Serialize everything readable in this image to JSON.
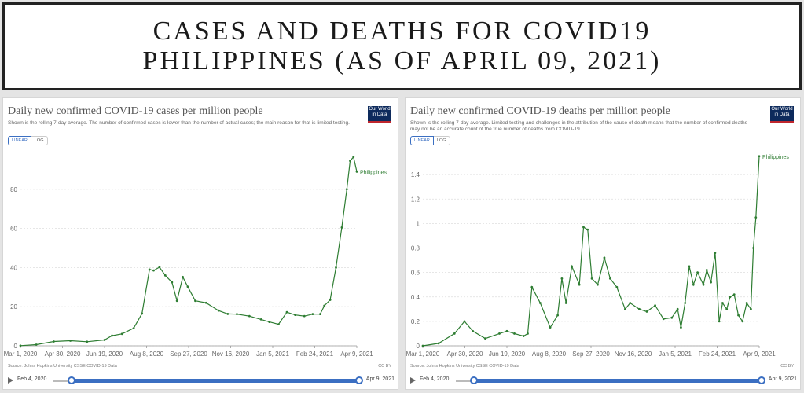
{
  "banner": {
    "line1": "CASES AND DEATHS FOR COVID19",
    "line2": "PHILIPPINES (AS OF APRIL 09, 2021)"
  },
  "common": {
    "logo_line1": "Our World",
    "logo_line2": "in Data",
    "toggle_linear": "LINEAR",
    "toggle_log": "LOG",
    "source": "Source: Johns Hopkins University CSSE COVID-19 Data",
    "license": "CC BY",
    "timeline_start": "Feb 4, 2020",
    "timeline_end": "Apr 9, 2021",
    "accent_color": "#3b6fc2",
    "line_color": "#2e7d32"
  },
  "chart_data": [
    {
      "type": "line",
      "title": "Daily new confirmed COVID-19 cases per million people",
      "subtitle": "Shown is the rolling 7-day average. The number of confirmed cases is lower than the number of actual cases; the main reason for that is limited testing.",
      "x_ticks": [
        "Mar 1, 2020",
        "Apr 30, 2020",
        "Jun 19, 2020",
        "Aug 8, 2020",
        "Sep 27, 2020",
        "Nov 16, 2020",
        "Jan 5, 2021",
        "Feb 24, 2021",
        "Apr 9, 2021"
      ],
      "y_ticks": [
        "0",
        "20",
        "40",
        "60",
        "80"
      ],
      "ylim": [
        0,
        100
      ],
      "xlim": [
        "2020-03-01",
        "2021-04-09"
      ],
      "series": [
        {
          "name": "Philippines",
          "x": [
            "2020-03-01",
            "2020-03-20",
            "2020-04-10",
            "2020-04-30",
            "2020-05-20",
            "2020-06-10",
            "2020-06-19",
            "2020-07-01",
            "2020-07-15",
            "2020-07-25",
            "2020-08-03",
            "2020-08-08",
            "2020-08-15",
            "2020-08-22",
            "2020-08-30",
            "2020-09-05",
            "2020-09-12",
            "2020-09-18",
            "2020-09-27",
            "2020-10-10",
            "2020-10-25",
            "2020-11-05",
            "2020-11-16",
            "2020-12-01",
            "2020-12-15",
            "2020-12-25",
            "2021-01-05",
            "2021-01-15",
            "2021-01-25",
            "2021-02-05",
            "2021-02-15",
            "2021-02-24",
            "2021-03-01",
            "2021-03-08",
            "2021-03-15",
            "2021-03-22",
            "2021-03-28",
            "2021-04-01",
            "2021-04-05",
            "2021-04-09"
          ],
          "y": [
            0.1,
            0.6,
            2.2,
            2.6,
            2.1,
            3.0,
            5.2,
            6.1,
            9.0,
            16.5,
            39.0,
            38.5,
            40.2,
            36.0,
            32.5,
            23.0,
            35.2,
            30.2,
            23.0,
            22.0,
            18.0,
            16.3,
            16.2,
            15.2,
            13.5,
            12.2,
            11.0,
            17.2,
            15.8,
            15.2,
            16.2,
            16.2,
            20.5,
            23.5,
            40.0,
            60.5,
            80.0,
            94.5,
            96.5,
            89.0
          ]
        }
      ]
    },
    {
      "type": "line",
      "title": "Daily new confirmed COVID-19 deaths per million people",
      "subtitle": "Shown is the rolling 7-day average. Limited testing and challenges in the attribution of the cause of death means that the number of confirmed deaths may not be an accurate count of the true number of deaths from COVID-19.",
      "x_ticks": [
        "Mar 1, 2020",
        "Apr 30, 2020",
        "Jun 19, 2020",
        "Aug 8, 2020",
        "Sep 27, 2020",
        "Nov 16, 2020",
        "Jan 5, 2021",
        "Feb 24, 2021",
        "Apr 9, 2021"
      ],
      "y_ticks": [
        "0",
        "0.2",
        "0.4",
        "0.6",
        "0.8",
        "1",
        "1.2",
        "1.4"
      ],
      "ylim": [
        0,
        1.6
      ],
      "xlim": [
        "2020-03-01",
        "2021-04-09"
      ],
      "series": [
        {
          "name": "Philippines",
          "x": [
            "2020-03-01",
            "2020-03-20",
            "2020-04-08",
            "2020-04-20",
            "2020-04-30",
            "2020-05-15",
            "2020-06-01",
            "2020-06-10",
            "2020-06-19",
            "2020-06-30",
            "2020-07-05",
            "2020-07-10",
            "2020-07-20",
            "2020-08-01",
            "2020-08-10",
            "2020-08-15",
            "2020-08-20",
            "2020-08-27",
            "2020-09-05",
            "2020-09-10",
            "2020-09-15",
            "2020-09-20",
            "2020-09-27",
            "2020-10-05",
            "2020-10-12",
            "2020-10-20",
            "2020-10-30",
            "2020-11-05",
            "2020-11-16",
            "2020-11-25",
            "2020-12-05",
            "2020-12-15",
            "2020-12-25",
            "2021-01-01",
            "2021-01-05",
            "2021-01-10",
            "2021-01-15",
            "2021-01-20",
            "2021-01-25",
            "2021-02-01",
            "2021-02-05",
            "2021-02-10",
            "2021-02-15",
            "2021-02-20",
            "2021-02-24",
            "2021-03-01",
            "2021-03-05",
            "2021-03-10",
            "2021-03-15",
            "2021-03-20",
            "2021-03-25",
            "2021-03-30",
            "2021-04-02",
            "2021-04-05",
            "2021-04-09"
          ],
          "y": [
            0,
            0.02,
            0.1,
            0.2,
            0.12,
            0.06,
            0.1,
            0.12,
            0.1,
            0.08,
            0.1,
            0.48,
            0.35,
            0.15,
            0.25,
            0.55,
            0.35,
            0.65,
            0.5,
            0.97,
            0.95,
            0.55,
            0.5,
            0.72,
            0.55,
            0.48,
            0.3,
            0.35,
            0.3,
            0.28,
            0.33,
            0.22,
            0.23,
            0.3,
            0.15,
            0.35,
            0.65,
            0.5,
            0.6,
            0.5,
            0.62,
            0.52,
            0.76,
            0.2,
            0.35,
            0.3,
            0.4,
            0.42,
            0.25,
            0.2,
            0.35,
            0.3,
            0.8,
            1.05,
            1.55
          ]
        }
      ]
    }
  ]
}
